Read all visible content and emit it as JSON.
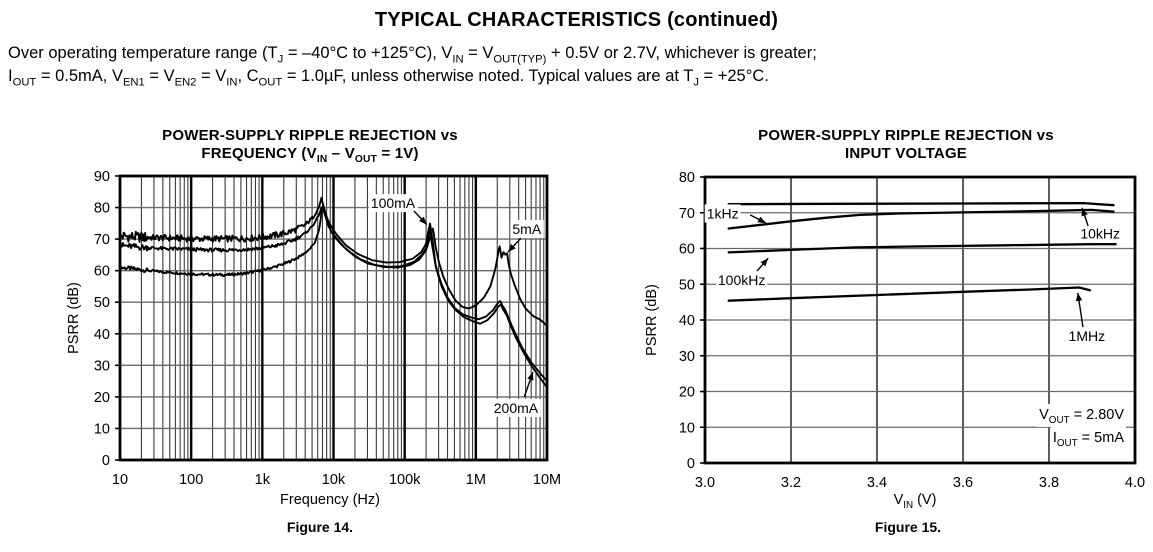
{
  "page": {
    "title": "TYPICAL CHARACTERISTICS (continued)",
    "conditions_line1": [
      {
        "t": "Over operating temperature range (T"
      },
      {
        "s": "J"
      },
      {
        "t": " = –40°C to +125°C), V"
      },
      {
        "s": "IN"
      },
      {
        "t": " = V"
      },
      {
        "s": "OUT(TYP)"
      },
      {
        "t": " + 0.5V or 2.7V, whichever is greater;"
      }
    ],
    "conditions_line2": [
      {
        "t": "I"
      },
      {
        "s": "OUT"
      },
      {
        "t": " = 0.5mA, V"
      },
      {
        "s": "EN1"
      },
      {
        "t": " = V"
      },
      {
        "s": "EN2"
      },
      {
        "t": " = V"
      },
      {
        "s": "IN"
      },
      {
        "t": ", C"
      },
      {
        "s": "OUT"
      },
      {
        "t": " = 1.0µF, unless otherwise noted. Typical values are at T"
      },
      {
        "s": "J"
      },
      {
        "t": " = +25°C."
      }
    ]
  },
  "colors": {
    "curve": "#000000",
    "grid_minor": "#3a3a3a",
    "grid_horizontal": "#6a6a6a",
    "grid_major": "#000000",
    "background": "#ffffff"
  },
  "chart_data": {
    "fig14": {
      "type": "line",
      "title_line1": "POWER-SUPPLY RIPPLE REJECTION vs",
      "title_line2_rich": [
        {
          "t": "FREQUENCY (V"
        },
        {
          "s": "IN"
        },
        {
          "t": " – V"
        },
        {
          "s": "OUT"
        },
        {
          "t": " = 1V)"
        }
      ],
      "xlabel": "Frequency (Hz)",
      "ylabel": "PSRR (dB)",
      "caption": "Figure 14.",
      "x_scale": "log",
      "x_range": [
        10,
        10000000
      ],
      "y_range": [
        0,
        90
      ],
      "y_tick_step": 10,
      "grid": true,
      "x_ticks": [
        {
          "v": 10,
          "label": "10"
        },
        {
          "v": 100,
          "label": "100"
        },
        {
          "v": 1000,
          "label": "1k"
        },
        {
          "v": 10000,
          "label": "10k"
        },
        {
          "v": 100000,
          "label": "100k"
        },
        {
          "v": 1000000,
          "label": "1M"
        },
        {
          "v": 10000000,
          "label": "10M"
        }
      ],
      "series": [
        {
          "name": "5mA",
          "noise": 0.4,
          "points": [
            [
              10,
              61
            ],
            [
              15,
              60.6
            ],
            [
              25,
              60
            ],
            [
              40,
              59.6
            ],
            [
              70,
              59.2
            ],
            [
              120,
              58.9
            ],
            [
              200,
              58.7
            ],
            [
              350,
              58.7
            ],
            [
              600,
              59.2
            ],
            [
              1000,
              60.2
            ],
            [
              1500,
              61.2
            ],
            [
              2200,
              62.5
            ],
            [
              3200,
              64.2
            ],
            [
              4500,
              66.5
            ],
            [
              5500,
              69
            ],
            [
              6300,
              73
            ],
            [
              6800,
              78.5
            ],
            [
              7200,
              80.5
            ],
            [
              7800,
              77
            ],
            [
              8500,
              74
            ],
            [
              10000,
              71.5
            ],
            [
              14000,
              67.5
            ],
            [
              20000,
              64.5
            ],
            [
              30000,
              62.3
            ],
            [
              50000,
              61.2
            ],
            [
              80000,
              61
            ],
            [
              120000,
              61.8
            ],
            [
              160000,
              63.5
            ],
            [
              200000,
              66.5
            ],
            [
              230000,
              71
            ],
            [
              250000,
              73.5
            ],
            [
              270000,
              68
            ],
            [
              300000,
              63
            ],
            [
              350000,
              58
            ],
            [
              420000,
              54
            ],
            [
              520000,
              50.5
            ],
            [
              650000,
              48.5
            ],
            [
              800000,
              48
            ],
            [
              1000000,
              49
            ],
            [
              1300000,
              51.5
            ],
            [
              1600000,
              55
            ],
            [
              1900000,
              61
            ],
            [
              2150000,
              68
            ],
            [
              2300000,
              64
            ],
            [
              2450000,
              66
            ],
            [
              2600000,
              65
            ],
            [
              2750000,
              65.5
            ],
            [
              2900000,
              62
            ],
            [
              3100000,
              59
            ],
            [
              3500000,
              55.5
            ],
            [
              4200000,
              51
            ],
            [
              5000000,
              48
            ],
            [
              6500000,
              45.5
            ],
            [
              8000000,
              44.5
            ],
            [
              10000000,
              42.5
            ]
          ]
        },
        {
          "name": "100mA",
          "noise": 1.0,
          "points": [
            [
              10,
              71
            ],
            [
              20,
              70.6
            ],
            [
              40,
              70.4
            ],
            [
              80,
              70.2
            ],
            [
              150,
              70.1
            ],
            [
              300,
              70.1
            ],
            [
              600,
              70.2
            ],
            [
              1000,
              70.6
            ],
            [
              1800,
              71.5
            ],
            [
              2800,
              72.8
            ],
            [
              4000,
              74.5
            ],
            [
              5200,
              77
            ],
            [
              6200,
              80
            ],
            [
              6800,
              83
            ],
            [
              7300,
              80
            ],
            [
              8000,
              77
            ],
            [
              9000,
              74.5
            ],
            [
              11000,
              71.5
            ],
            [
              15000,
              68
            ],
            [
              22000,
              65.3
            ],
            [
              35000,
              63.3
            ],
            [
              55000,
              62.6
            ],
            [
              85000,
              62.7
            ],
            [
              130000,
              63.8
            ],
            [
              170000,
              65.8
            ],
            [
              200000,
              68.5
            ],
            [
              220000,
              73.8
            ],
            [
              240000,
              69
            ],
            [
              270000,
              62
            ],
            [
              320000,
              56.5
            ],
            [
              400000,
              51.5
            ],
            [
              500000,
              48.3
            ],
            [
              650000,
              46.2
            ],
            [
              850000,
              45.2
            ],
            [
              1100000,
              44.6
            ],
            [
              1400000,
              45.5
            ],
            [
              1750000,
              47.5
            ],
            [
              2000000,
              49.5
            ],
            [
              2200000,
              50.5
            ],
            [
              2350000,
              49
            ],
            [
              2600000,
              47.5
            ],
            [
              3000000,
              44
            ],
            [
              3600000,
              40
            ],
            [
              4500000,
              35.5
            ],
            [
              6000000,
              31
            ],
            [
              8000000,
              27.5
            ],
            [
              10000000,
              25
            ]
          ]
        },
        {
          "name": "200mA",
          "noise": 0.55,
          "points": [
            [
              10,
              68
            ],
            [
              20,
              67.4
            ],
            [
              40,
              67
            ],
            [
              80,
              66.8
            ],
            [
              150,
              66.6
            ],
            [
              300,
              66.5
            ],
            [
              600,
              66.7
            ],
            [
              1000,
              67.2
            ],
            [
              1800,
              68.2
            ],
            [
              2800,
              69.8
            ],
            [
              4000,
              71.8
            ],
            [
              5200,
              74.5
            ],
            [
              6200,
              77.5
            ],
            [
              6900,
              80.5
            ],
            [
              7500,
              78
            ],
            [
              8300,
              75
            ],
            [
              9500,
              72
            ],
            [
              12000,
              69
            ],
            [
              16000,
              66.3
            ],
            [
              24000,
              63.6
            ],
            [
              38000,
              61.8
            ],
            [
              60000,
              61.2
            ],
            [
              90000,
              61.4
            ],
            [
              135000,
              62.8
            ],
            [
              175000,
              65
            ],
            [
              205000,
              67.5
            ],
            [
              227000,
              75
            ],
            [
              245000,
              70
            ],
            [
              275000,
              61
            ],
            [
              330000,
              55
            ],
            [
              410000,
              50.5
            ],
            [
              520000,
              47.5
            ],
            [
              680000,
              45.3
            ],
            [
              900000,
              44
            ],
            [
              1150000,
              43.2
            ],
            [
              1450000,
              44.3
            ],
            [
              1800000,
              46.5
            ],
            [
              2050000,
              48.5
            ],
            [
              2250000,
              49.3
            ],
            [
              2400000,
              47.8
            ],
            [
              2700000,
              46
            ],
            [
              3100000,
              42.5
            ],
            [
              3700000,
              38.5
            ],
            [
              4700000,
              34
            ],
            [
              6200000,
              29.5
            ],
            [
              8000000,
              26
            ],
            [
              10000000,
              23
            ]
          ]
        }
      ],
      "annotations": [
        {
          "label": "100mA",
          "anchor": "middle",
          "label_at": [
            68500,
            81.4
          ],
          "arrow_from": [
            135000,
            78.9
          ],
          "arrow_to": [
            205000,
            74.6
          ]
        },
        {
          "label": "5mA",
          "anchor": "middle",
          "label_at": [
            5200000,
            73.2
          ],
          "arrow_from": [
            4300000,
            70.3
          ],
          "arrow_to": [
            2830000,
            65.9
          ]
        },
        {
          "label": "200mA",
          "anchor": "middle",
          "label_at": [
            3660000,
            16.5
          ],
          "arrow_from": [
            4800000,
            20
          ],
          "arrow_to": [
            6350000,
            27.9
          ]
        }
      ]
    },
    "fig15": {
      "type": "line",
      "title_line1": "POWER-SUPPLY RIPPLE REJECTION vs",
      "title_line2": "INPUT VOLTAGE",
      "xlabel_rich": [
        {
          "t": "V"
        },
        {
          "s": "IN"
        },
        {
          "t": " (V)"
        }
      ],
      "ylabel": "PSRR (dB)",
      "caption": "Figure 15.",
      "x_scale": "linear",
      "x_range": [
        3.0,
        4.0
      ],
      "y_range": [
        0,
        80
      ],
      "y_tick_step": 10,
      "grid": true,
      "x_ticks": [
        {
          "v": 3.0,
          "label": "3.0"
        },
        {
          "v": 3.2,
          "label": "3.2"
        },
        {
          "v": 3.4,
          "label": "3.4"
        },
        {
          "v": 3.6,
          "label": "3.6"
        },
        {
          "v": 3.8,
          "label": "3.8"
        },
        {
          "v": 4.0,
          "label": "4.0"
        }
      ],
      "series": [
        {
          "name": "10kHz",
          "points": [
            [
              3.055,
              72.4
            ],
            [
              3.3,
              72.5
            ],
            [
              3.6,
              72.6
            ],
            [
              3.88,
              72.7
            ],
            [
              3.95,
              72.1
            ]
          ]
        },
        {
          "name": "1kHz",
          "points": [
            [
              3.055,
              65.6
            ],
            [
              3.12,
              66.5
            ],
            [
              3.2,
              67.6
            ],
            [
              3.28,
              68.6
            ],
            [
              3.36,
              69.4
            ],
            [
              3.45,
              69.8
            ],
            [
              3.6,
              70.1
            ],
            [
              3.75,
              70.4
            ],
            [
              3.9,
              70.8
            ],
            [
              3.95,
              70.3
            ]
          ]
        },
        {
          "name": "100kHz",
          "points": [
            [
              3.055,
              58.9
            ],
            [
              3.2,
              59.6
            ],
            [
              3.35,
              60.3
            ],
            [
              3.5,
              60.6
            ],
            [
              3.7,
              60.9
            ],
            [
              3.9,
              61.2
            ],
            [
              3.955,
              61.2
            ]
          ]
        },
        {
          "name": "1MHz",
          "points": [
            [
              3.055,
              45.4
            ],
            [
              3.2,
              46.1
            ],
            [
              3.4,
              47
            ],
            [
              3.6,
              47.9
            ],
            [
              3.75,
              48.5
            ],
            [
              3.87,
              49.1
            ],
            [
              3.895,
              48.3
            ]
          ]
        }
      ],
      "annotations": [
        {
          "label": "1kHz",
          "anchor": "start",
          "label_at": [
            3.004,
            69.8
          ],
          "arrow_from": [
            3.105,
            69.4
          ],
          "arrow_to": [
            3.142,
            67.1
          ]
        },
        {
          "label": "10kHz",
          "anchor": "middle",
          "label_at": [
            3.919,
            64.2
          ],
          "arrow_from": [
            3.891,
            66.3
          ],
          "arrow_to": [
            3.877,
            71.4
          ]
        },
        {
          "label": "100kHz",
          "anchor": "start",
          "label_at": [
            3.03,
            51.2
          ],
          "arrow_from": [
            3.121,
            53.7
          ],
          "arrow_to": [
            3.147,
            57.3
          ]
        },
        {
          "label": "1MHz",
          "anchor": "middle",
          "label_at": [
            3.888,
            35.5
          ],
          "arrow_from": [
            3.879,
            38.0
          ],
          "arrow_to": [
            3.867,
            47.6
          ]
        }
      ],
      "note_line1_rich": [
        {
          "t": "V"
        },
        {
          "s": "OUT"
        },
        {
          "t": " = 2.80V"
        }
      ],
      "note_line2_rich": [
        {
          "t": "I"
        },
        {
          "s": "OUT"
        },
        {
          "t": " = 5mA"
        }
      ]
    }
  }
}
